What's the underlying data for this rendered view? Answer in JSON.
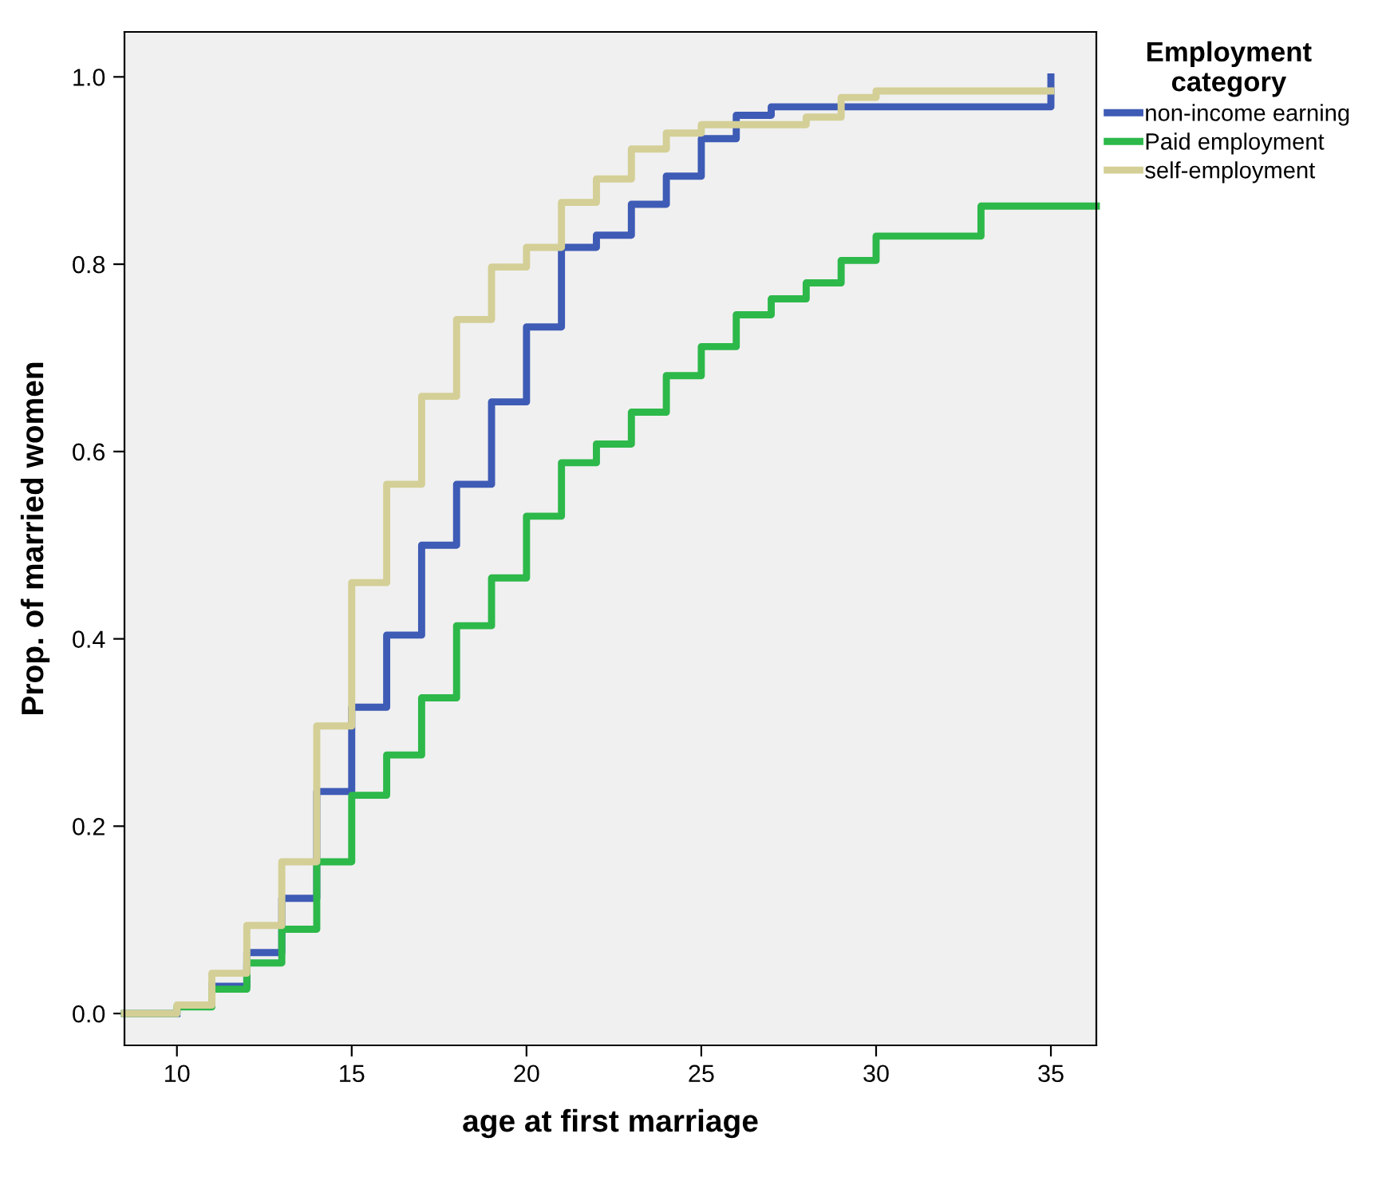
{
  "chart_data": {
    "type": "step",
    "xlabel": "age at first marriage",
    "ylabel": "Prop. of married women",
    "legend_title": "Employment\ncategory",
    "legend": "top right",
    "grid": false,
    "line_style": "solid",
    "marker": "none",
    "xlim": [
      8.5,
      36.3
    ],
    "xticks": [
      10,
      15,
      20,
      25,
      30,
      35
    ],
    "ylim": [
      -0.034,
      1.048
    ],
    "yticks": [
      {
        "value": 0,
        "label": "0.0"
      },
      {
        "value": 0.2,
        "label": "0.2"
      },
      {
        "value": 0.4,
        "label": "0.4"
      },
      {
        "value": 0.6,
        "label": "0.6"
      },
      {
        "value": 0.8,
        "label": "0.8"
      },
      {
        "value": 1.0,
        "label": "1.0"
      }
    ],
    "series": [
      {
        "name": "non-income earning",
        "color": "#3e5bb5",
        "x": [
          8.5,
          10,
          11,
          12,
          13,
          14,
          15,
          16,
          17,
          18,
          19,
          20,
          21,
          22,
          23,
          24,
          25,
          26,
          27,
          35,
          35
        ],
        "values": [
          0.0,
          null,
          0.029,
          0.065,
          0.123,
          0.237,
          0.327,
          0.404,
          0.5,
          0.565,
          0.653,
          0.733,
          0.818,
          0.831,
          0.864,
          0.894,
          0.934,
          0.959,
          0.968,
          1.0,
          1.0
        ]
      },
      {
        "name": "Paid employment",
        "color": "#2db84a",
        "x": [
          8.5,
          10,
          11,
          12,
          13,
          14,
          15,
          16,
          17,
          18,
          19,
          20,
          21,
          22,
          23,
          24,
          25,
          26,
          27,
          28,
          29,
          30,
          33,
          36.3
        ],
        "values": [
          0.0,
          0.007,
          0.026,
          0.054,
          0.09,
          0.162,
          0.233,
          0.276,
          0.337,
          0.414,
          0.465,
          0.531,
          0.588,
          0.608,
          0.642,
          0.681,
          0.712,
          0.746,
          0.763,
          0.78,
          0.804,
          0.83,
          0.862,
          0.862
        ]
      },
      {
        "name": "self-employment",
        "color": "#d4cf96",
        "x": [
          8.5,
          10,
          11,
          12,
          13,
          14,
          15,
          16,
          17,
          18,
          19,
          20,
          21,
          22,
          23,
          24,
          25,
          28,
          29,
          30,
          35
        ],
        "values": [
          0.0,
          0.009,
          0.043,
          0.094,
          0.162,
          0.307,
          0.46,
          0.565,
          0.659,
          0.741,
          0.797,
          0.818,
          0.866,
          0.891,
          0.923,
          0.94,
          0.949,
          0.957,
          0.978,
          0.985,
          0.985
        ]
      }
    ]
  }
}
